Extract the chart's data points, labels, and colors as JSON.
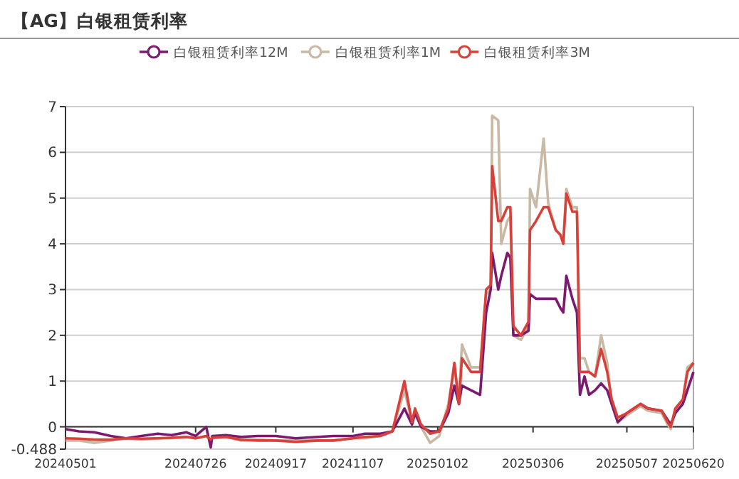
{
  "chart_data": {
    "type": "line",
    "title": "【AG】白银租赁利率",
    "x": [
      "2024-05-01",
      "2024-05-10",
      "2024-05-20",
      "2024-05-31",
      "2024-06-10",
      "2024-06-20",
      "2024-07-01",
      "2024-07-10",
      "2024-07-20",
      "2024-07-26",
      "2024-08-02",
      "2024-08-05",
      "2024-08-06",
      "2024-08-15",
      "2024-08-25",
      "2024-09-05",
      "2024-09-17",
      "2024-09-30",
      "2024-10-15",
      "2024-10-25",
      "2024-11-07",
      "2024-11-15",
      "2024-11-25",
      "2024-12-03",
      "2024-12-11",
      "2024-12-16",
      "2024-12-18",
      "2024-12-22",
      "2024-12-28",
      "2025-01-03",
      "2025-01-09",
      "2025-01-13",
      "2025-01-16",
      "2025-01-18",
      "2025-01-24",
      "2025-01-30",
      "2025-02-03",
      "2025-02-06",
      "2025-02-07",
      "2025-02-11",
      "2025-02-13",
      "2025-02-17",
      "2025-02-19",
      "2025-02-21",
      "2025-02-26",
      "2025-03-03",
      "2025-03-04",
      "2025-03-08",
      "2025-03-13",
      "2025-03-16",
      "2025-03-21",
      "2025-03-24",
      "2025-03-26",
      "2025-03-28",
      "2025-04-01",
      "2025-04-04",
      "2025-04-06",
      "2025-04-09",
      "2025-04-12",
      "2025-04-16",
      "2025-04-20",
      "2025-04-24",
      "2025-04-27",
      "2025-05-01",
      "2025-05-07",
      "2025-05-16",
      "2025-05-21",
      "2025-05-30",
      "2025-06-03",
      "2025-06-05",
      "2025-06-08",
      "2025-06-13",
      "2025-06-16",
      "2025-06-20"
    ],
    "series": [
      {
        "name": "白银租赁利率12M",
        "color": "#7b1a6e",
        "values": [
          -0.05,
          -0.1,
          -0.12,
          -0.2,
          -0.25,
          -0.2,
          -0.15,
          -0.18,
          -0.12,
          -0.2,
          0.0,
          -0.45,
          -0.2,
          -0.18,
          -0.22,
          -0.2,
          -0.2,
          -0.25,
          -0.22,
          -0.2,
          -0.2,
          -0.15,
          -0.15,
          -0.1,
          0.4,
          0.05,
          0.3,
          0.0,
          -0.1,
          -0.1,
          0.3,
          0.9,
          0.5,
          0.9,
          0.8,
          0.7,
          2.5,
          3.0,
          3.8,
          3.0,
          3.3,
          3.8,
          3.7,
          2.0,
          2.0,
          2.1,
          2.9,
          2.8,
          2.8,
          2.8,
          2.8,
          2.6,
          2.5,
          3.3,
          2.8,
          2.5,
          0.7,
          1.1,
          0.7,
          0.8,
          0.95,
          0.8,
          0.5,
          0.1,
          0.3,
          0.5,
          0.4,
          0.35,
          0.15,
          0.05,
          0.3,
          0.5,
          0.8,
          1.2
        ]
      },
      {
        "name": "白银租赁利率1M",
        "color": "#c9b9a4",
        "values": [
          -0.3,
          -0.3,
          -0.35,
          -0.3,
          -0.25,
          -0.28,
          -0.25,
          -0.25,
          -0.22,
          -0.25,
          -0.2,
          -0.3,
          -0.25,
          -0.22,
          -0.3,
          -0.28,
          -0.3,
          -0.3,
          -0.3,
          -0.3,
          -0.25,
          -0.25,
          -0.2,
          -0.1,
          0.8,
          0.1,
          0.35,
          0.0,
          -0.35,
          -0.2,
          0.5,
          1.3,
          0.6,
          1.8,
          1.3,
          1.3,
          2.9,
          3.0,
          6.8,
          6.7,
          4.0,
          4.5,
          4.6,
          2.0,
          1.9,
          2.2,
          5.2,
          4.8,
          6.3,
          4.9,
          4.3,
          4.2,
          4.1,
          5.2,
          4.8,
          4.8,
          1.5,
          1.5,
          1.2,
          1.1,
          2.0,
          1.4,
          0.5,
          0.1,
          0.25,
          0.45,
          0.35,
          0.3,
          0.05,
          -0.05,
          0.35,
          0.55,
          1.3,
          1.4
        ]
      },
      {
        "name": "白银租赁利率3M",
        "color": "#d8403a",
        "values": [
          -0.25,
          -0.26,
          -0.28,
          -0.28,
          -0.25,
          -0.26,
          -0.25,
          -0.24,
          -0.22,
          -0.25,
          -0.2,
          -0.28,
          -0.24,
          -0.22,
          -0.28,
          -0.3,
          -0.3,
          -0.33,
          -0.3,
          -0.3,
          -0.25,
          -0.22,
          -0.2,
          -0.1,
          1.0,
          0.1,
          0.4,
          0.05,
          -0.15,
          -0.1,
          0.4,
          1.4,
          0.5,
          1.5,
          1.2,
          1.2,
          3.0,
          3.1,
          5.7,
          4.5,
          4.5,
          4.8,
          4.8,
          2.2,
          2.0,
          2.3,
          4.3,
          4.5,
          4.8,
          4.8,
          4.3,
          4.2,
          4.0,
          5.1,
          4.7,
          4.7,
          1.2,
          1.2,
          1.2,
          1.1,
          1.7,
          1.2,
          0.6,
          0.2,
          0.3,
          0.5,
          0.4,
          0.35,
          0.1,
          0.0,
          0.4,
          0.6,
          1.2,
          1.4
        ]
      }
    ],
    "xlim": [
      "2024-05-01",
      "2025-06-20"
    ],
    "xticks": [
      {
        "value": "2024-05-01",
        "label": "20240501"
      },
      {
        "value": "2024-07-26",
        "label": "20240726"
      },
      {
        "value": "2024-09-17",
        "label": "20240917"
      },
      {
        "value": "2024-11-07",
        "label": "20241107"
      },
      {
        "value": "2025-01-02",
        "label": "20250102"
      },
      {
        "value": "2025-03-06",
        "label": "20250306"
      },
      {
        "value": "2025-05-07",
        "label": "20250507"
      },
      {
        "value": "2025-06-20",
        "label": "20250620"
      }
    ],
    "ylim": [
      -0.488,
      7
    ],
    "yticks": [
      -0.488,
      0,
      1,
      2,
      3,
      4,
      5,
      6,
      7
    ],
    "grid": "y",
    "legend": "top"
  }
}
